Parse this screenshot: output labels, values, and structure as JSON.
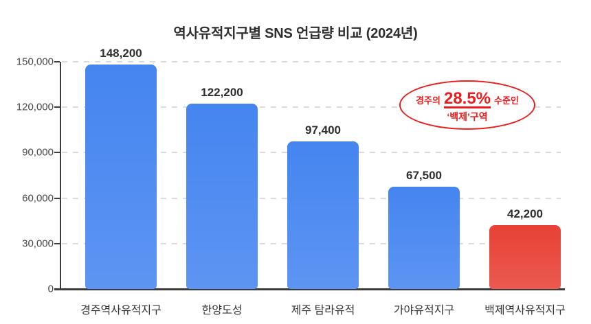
{
  "title": "역사유적지구별 SNS 언급량 비교 (2024년)",
  "chart_data": {
    "type": "bar",
    "title": "역사유적지구별 SNS 언급량 비교 (2024년)",
    "categories": [
      "경주역사유적지구",
      "한양도성",
      "제주 탐라유적",
      "가야유적지구",
      "백제역사유적지구"
    ],
    "values": [
      148200,
      122200,
      97400,
      67500,
      42200
    ],
    "value_labels": [
      "148,200",
      "122,200",
      "97,400",
      "67,500",
      "42,200"
    ],
    "bar_colors": [
      "#4585F0",
      "#4585F0",
      "#4585F0",
      "#4585F0",
      "#E84136"
    ],
    "xlabel": "",
    "ylabel": "",
    "ylim": [
      0,
      150000
    ],
    "yticks": [
      0,
      30000,
      60000,
      90000,
      120000,
      150000
    ],
    "ytick_labels": [
      "0",
      "30,000",
      "60,000",
      "90,000",
      "120,000",
      "150,000"
    ],
    "grid": "horizontal-dashed",
    "legend": "none"
  },
  "annotation": {
    "line1_prefix": "경주의",
    "highlight": "28.5%",
    "line1_suffix": "수준인",
    "line2": "‘백제’구역",
    "color": "#ec1c1c"
  },
  "colors": {
    "bar_blue": "#4585F0",
    "bar_red": "#E84136",
    "axis": "#3b3b3b",
    "grid_line": "#dcdcdc",
    "text_dark": "#2e2e2e",
    "annotation_red": "#ec1c1c"
  }
}
